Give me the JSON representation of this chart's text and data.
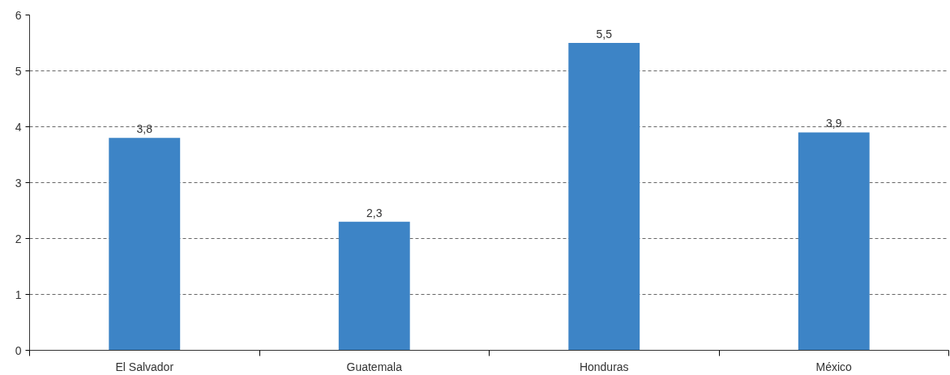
{
  "chart_data": {
    "type": "bar",
    "categories": [
      "El Salvador",
      "Guatemala",
      "Honduras",
      "México"
    ],
    "values": [
      3.8,
      2.3,
      5.5,
      3.9
    ],
    "value_labels": [
      "3,8",
      "2,3",
      "5,5",
      "3,9"
    ],
    "color": "#3d84c6",
    "ylim": [
      0,
      6
    ],
    "yticks": [
      0,
      1,
      2,
      3,
      4,
      5,
      6
    ],
    "grid": "y"
  }
}
